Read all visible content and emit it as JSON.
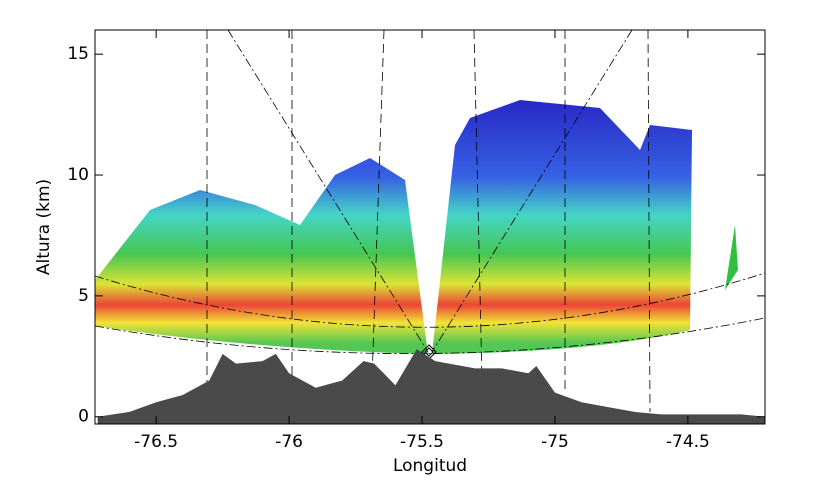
{
  "chart_data": {
    "type": "area",
    "xlabel": "Longitud",
    "ylabel": "Altura (km)",
    "xlim": [
      -76.73,
      -74.21
    ],
    "ylim": [
      -0.3,
      16
    ],
    "xticks": [
      -76.5,
      -76.0,
      -75.5,
      -75.0,
      -74.5
    ],
    "yticks": [
      0,
      5,
      10,
      15
    ],
    "color": "#4a4a4a",
    "x": [
      -76.72,
      -76.6,
      -76.5,
      -76.4,
      -76.3,
      -76.25,
      -76.2,
      -76.1,
      -76.05,
      -76.0,
      -75.9,
      -75.8,
      -75.72,
      -75.68,
      -75.6,
      -75.52,
      -75.45,
      -75.3,
      -75.2,
      -75.1,
      -75.07,
      -75.0,
      -74.9,
      -74.8,
      -74.7,
      -74.6,
      -74.5,
      -74.3,
      -74.21
    ],
    "values": [
      0,
      0.2,
      0.6,
      0.9,
      1.5,
      2.6,
      2.2,
      2.3,
      2.6,
      1.8,
      1.2,
      1.5,
      2.3,
      2.2,
      1.3,
      2.8,
      2.3,
      2.0,
      2.0,
      1.8,
      2.1,
      1.0,
      0.6,
      0.4,
      0.2,
      0.1,
      0.1,
      0.1,
      0
    ]
  }
}
